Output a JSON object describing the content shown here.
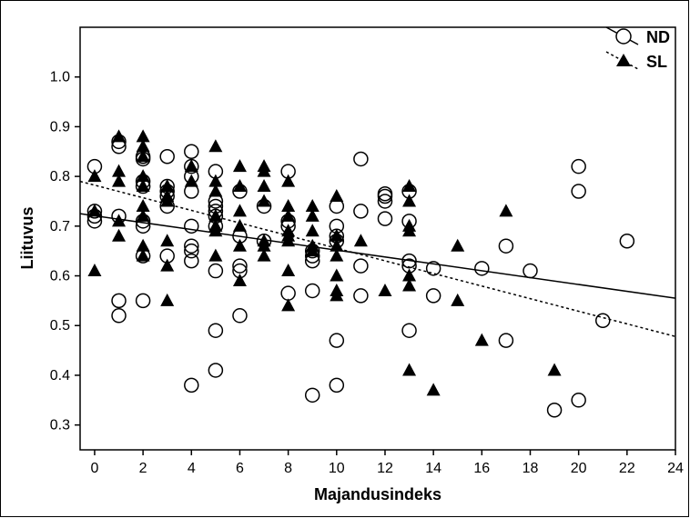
{
  "chart_data": {
    "type": "scatter",
    "title": "",
    "xlabel": "Majandusindeks",
    "ylabel": "Liituvus",
    "xlim": [
      -0.6,
      24
    ],
    "ylim": [
      0.25,
      1.1
    ],
    "xticks": [
      0,
      2,
      4,
      6,
      8,
      10,
      12,
      14,
      16,
      18,
      20,
      22,
      24
    ],
    "xtick_labels": [
      "0",
      "2",
      "4",
      "6",
      "8",
      "10",
      "12",
      "14",
      "16",
      "18",
      "20",
      "22",
      "24"
    ],
    "yticks": [
      0.3,
      0.4,
      0.5,
      0.6,
      0.7,
      0.8,
      0.9,
      1.0
    ],
    "ytick_labels": [
      "0.3",
      "0.4",
      "0.5",
      "0.6",
      "0.7",
      "0.8",
      "0.9",
      "1.0"
    ],
    "grid": false,
    "legend_position": "top-right",
    "series": [
      {
        "name": "ND",
        "marker": "open-circle",
        "fit_line": {
          "style": "solid",
          "x": [
            -0.6,
            24
          ],
          "y": [
            0.725,
            0.555
          ]
        },
        "points": [
          [
            0,
            0.82
          ],
          [
            0,
            0.73
          ],
          [
            0,
            0.72
          ],
          [
            0,
            0.71
          ],
          [
            1,
            0.87
          ],
          [
            1,
            0.86
          ],
          [
            1,
            0.72
          ],
          [
            1,
            0.55
          ],
          [
            1,
            0.52
          ],
          [
            2,
            0.84
          ],
          [
            2,
            0.835
          ],
          [
            2,
            0.79
          ],
          [
            2,
            0.78
          ],
          [
            2,
            0.71
          ],
          [
            2,
            0.7
          ],
          [
            2,
            0.64
          ],
          [
            2,
            0.55
          ],
          [
            3,
            0.84
          ],
          [
            3,
            0.78
          ],
          [
            3,
            0.77
          ],
          [
            3,
            0.76
          ],
          [
            3,
            0.74
          ],
          [
            3,
            0.64
          ],
          [
            4,
            0.85
          ],
          [
            4,
            0.82
          ],
          [
            4,
            0.8
          ],
          [
            4,
            0.77
          ],
          [
            4,
            0.7
          ],
          [
            4,
            0.66
          ],
          [
            4,
            0.65
          ],
          [
            4,
            0.63
          ],
          [
            4,
            0.38
          ],
          [
            5,
            0.81
          ],
          [
            5,
            0.75
          ],
          [
            5,
            0.74
          ],
          [
            5,
            0.73
          ],
          [
            5,
            0.72
          ],
          [
            5,
            0.7
          ],
          [
            5,
            0.61
          ],
          [
            5,
            0.49
          ],
          [
            5,
            0.41
          ],
          [
            6,
            0.77
          ],
          [
            6,
            0.68
          ],
          [
            6,
            0.62
          ],
          [
            6,
            0.61
          ],
          [
            6,
            0.52
          ],
          [
            7,
            0.74
          ],
          [
            7,
            0.67
          ],
          [
            8,
            0.81
          ],
          [
            8,
            0.71
          ],
          [
            8,
            0.7
          ],
          [
            8,
            0.565
          ],
          [
            9,
            0.65
          ],
          [
            9,
            0.64
          ],
          [
            9,
            0.63
          ],
          [
            9,
            0.57
          ],
          [
            9,
            0.36
          ],
          [
            10,
            0.74
          ],
          [
            10,
            0.7
          ],
          [
            10,
            0.68
          ],
          [
            10,
            0.67
          ],
          [
            10,
            0.47
          ],
          [
            10,
            0.38
          ],
          [
            11,
            0.835
          ],
          [
            11,
            0.73
          ],
          [
            11,
            0.62
          ],
          [
            11,
            0.56
          ],
          [
            12,
            0.765
          ],
          [
            12,
            0.76
          ],
          [
            12,
            0.75
          ],
          [
            12,
            0.715
          ],
          [
            13,
            0.77
          ],
          [
            13,
            0.71
          ],
          [
            13,
            0.63
          ],
          [
            13,
            0.62
          ],
          [
            13,
            0.49
          ],
          [
            14,
            0.615
          ],
          [
            14,
            0.56
          ],
          [
            16,
            0.615
          ],
          [
            17,
            0.66
          ],
          [
            17,
            0.47
          ],
          [
            18,
            0.61
          ],
          [
            19,
            0.33
          ],
          [
            20,
            0.82
          ],
          [
            20,
            0.77
          ],
          [
            20,
            0.35
          ],
          [
            21,
            0.51
          ],
          [
            22,
            0.67
          ]
        ]
      },
      {
        "name": "SL",
        "marker": "filled-triangle",
        "fit_line": {
          "style": "dashed",
          "x": [
            -0.6,
            24
          ],
          "y": [
            0.79,
            0.478
          ]
        },
        "points": [
          [
            0,
            0.8
          ],
          [
            0,
            0.73
          ],
          [
            0,
            0.61
          ],
          [
            1,
            0.88
          ],
          [
            1,
            0.81
          ],
          [
            1,
            0.79
          ],
          [
            1,
            0.71
          ],
          [
            1,
            0.68
          ],
          [
            2,
            0.88
          ],
          [
            2,
            0.86
          ],
          [
            2,
            0.84
          ],
          [
            2,
            0.8
          ],
          [
            2,
            0.78
          ],
          [
            2,
            0.74
          ],
          [
            2,
            0.72
          ],
          [
            2,
            0.66
          ],
          [
            2,
            0.64
          ],
          [
            3,
            0.78
          ],
          [
            3,
            0.76
          ],
          [
            3,
            0.75
          ],
          [
            3,
            0.67
          ],
          [
            3,
            0.62
          ],
          [
            3,
            0.55
          ],
          [
            4,
            0.82
          ],
          [
            4,
            0.79
          ],
          [
            5,
            0.86
          ],
          [
            5,
            0.79
          ],
          [
            5,
            0.77
          ],
          [
            5,
            0.72
          ],
          [
            5,
            0.7
          ],
          [
            5,
            0.69
          ],
          [
            5,
            0.64
          ],
          [
            6,
            0.82
          ],
          [
            6,
            0.78
          ],
          [
            6,
            0.73
          ],
          [
            6,
            0.7
          ],
          [
            6,
            0.66
          ],
          [
            6,
            0.59
          ],
          [
            7,
            0.82
          ],
          [
            7,
            0.81
          ],
          [
            7,
            0.78
          ],
          [
            7,
            0.75
          ],
          [
            7,
            0.67
          ],
          [
            7,
            0.66
          ],
          [
            7,
            0.64
          ],
          [
            8,
            0.79
          ],
          [
            8,
            0.74
          ],
          [
            8,
            0.72
          ],
          [
            8,
            0.69
          ],
          [
            8,
            0.68
          ],
          [
            8,
            0.67
          ],
          [
            8,
            0.61
          ],
          [
            8,
            0.54
          ],
          [
            9,
            0.74
          ],
          [
            9,
            0.72
          ],
          [
            9,
            0.69
          ],
          [
            9,
            0.66
          ],
          [
            9,
            0.65
          ],
          [
            10,
            0.76
          ],
          [
            10,
            0.68
          ],
          [
            10,
            0.66
          ],
          [
            10,
            0.64
          ],
          [
            10,
            0.6
          ],
          [
            10,
            0.57
          ],
          [
            10,
            0.56
          ],
          [
            11,
            0.67
          ],
          [
            12,
            0.57
          ],
          [
            13,
            0.78
          ],
          [
            13,
            0.75
          ],
          [
            13,
            0.7
          ],
          [
            13,
            0.69
          ],
          [
            13,
            0.6
          ],
          [
            13,
            0.58
          ],
          [
            13,
            0.41
          ],
          [
            14,
            0.37
          ],
          [
            15,
            0.66
          ],
          [
            15,
            0.55
          ],
          [
            16,
            0.47
          ],
          [
            17,
            0.73
          ],
          [
            19,
            0.41
          ]
        ]
      }
    ]
  }
}
